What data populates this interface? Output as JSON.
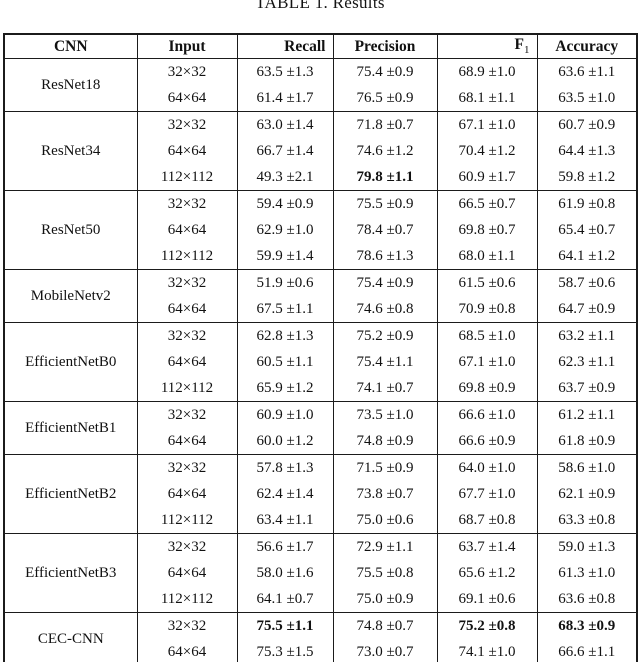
{
  "title": "TABLE 1. Results",
  "colors": {
    "border": "#1b1b1b",
    "text": "#111111",
    "background": "#ffffff"
  },
  "table": {
    "headers": {
      "cnn": "CNN",
      "input": "Input",
      "recall": "Recall",
      "precision": "Precision",
      "f1_base": "F",
      "f1_sub": "1",
      "accuracy": "Accuracy"
    },
    "metric_order": [
      "recall",
      "precision",
      "f1",
      "accuracy"
    ],
    "groups": [
      {
        "model": "ResNet18",
        "rows": [
          {
            "input": "32×32",
            "metrics": [
              "63.5 ±1.3",
              "75.4 ±0.9",
              "68.9 ±1.0",
              "63.6 ±1.1"
            ],
            "bold": []
          },
          {
            "input": "64×64",
            "metrics": [
              "61.4 ±1.7",
              "76.5 ±0.9",
              "68.1 ±1.1",
              "63.5 ±1.0"
            ],
            "bold": []
          }
        ]
      },
      {
        "model": "ResNet34",
        "rows": [
          {
            "input": "32×32",
            "metrics": [
              "63.0 ±1.4",
              "71.8 ±0.7",
              "67.1 ±1.0",
              "60.7 ±0.9"
            ],
            "bold": []
          },
          {
            "input": "64×64",
            "metrics": [
              "66.7 ±1.4",
              "74.6 ±1.2",
              "70.4 ±1.2",
              "64.4 ±1.3"
            ],
            "bold": []
          },
          {
            "input": "112×112",
            "metrics": [
              "49.3 ±2.1",
              "79.8 ±1.1",
              "60.9 ±1.7",
              "59.8 ±1.2"
            ],
            "bold": [
              1
            ]
          }
        ]
      },
      {
        "model": "ResNet50",
        "rows": [
          {
            "input": "32×32",
            "metrics": [
              "59.4 ±0.9",
              "75.5 ±0.9",
              "66.5 ±0.7",
              "61.9 ±0.8"
            ],
            "bold": []
          },
          {
            "input": "64×64",
            "metrics": [
              "62.9 ±1.0",
              "78.4 ±0.7",
              "69.8 ±0.7",
              "65.4 ±0.7"
            ],
            "bold": []
          },
          {
            "input": "112×112",
            "metrics": [
              "59.9 ±1.4",
              "78.6 ±1.3",
              "68.0 ±1.1",
              "64.1 ±1.2"
            ],
            "bold": []
          }
        ]
      },
      {
        "model": "MobileNetv2",
        "rows": [
          {
            "input": "32×32",
            "metrics": [
              "51.9 ±0.6",
              "75.4 ±0.9",
              "61.5 ±0.6",
              "58.7 ±0.6"
            ],
            "bold": []
          },
          {
            "input": "64×64",
            "metrics": [
              "67.5 ±1.1",
              "74.6 ±0.8",
              "70.9 ±0.8",
              "64.7 ±0.9"
            ],
            "bold": []
          }
        ]
      },
      {
        "model": "EfficientNetB0",
        "rows": [
          {
            "input": "32×32",
            "metrics": [
              "62.8 ±1.3",
              "75.2 ±0.9",
              "68.5 ±1.0",
              "63.2 ±1.1"
            ],
            "bold": []
          },
          {
            "input": "64×64",
            "metrics": [
              "60.5 ±1.1",
              "75.4 ±1.1",
              "67.1 ±1.0",
              "62.3 ±1.1"
            ],
            "bold": []
          },
          {
            "input": "112×112",
            "metrics": [
              "65.9 ±1.2",
              "74.1 ±0.7",
              "69.8 ±0.9",
              "63.7 ±0.9"
            ],
            "bold": []
          }
        ]
      },
      {
        "model": "EfficientNetB1",
        "rows": [
          {
            "input": "32×32",
            "metrics": [
              "60.9 ±1.0",
              "73.5 ±1.0",
              "66.6 ±1.0",
              "61.2 ±1.1"
            ],
            "bold": []
          },
          {
            "input": "64×64",
            "metrics": [
              "60.0 ±1.2",
              "74.8 ±0.9",
              "66.6 ±0.9",
              "61.8 ±0.9"
            ],
            "bold": []
          }
        ]
      },
      {
        "model": "EfficientNetB2",
        "rows": [
          {
            "input": "32×32",
            "metrics": [
              "57.8 ±1.3",
              "71.5 ±0.9",
              "64.0 ±1.0",
              "58.6 ±1.0"
            ],
            "bold": []
          },
          {
            "input": "64×64",
            "metrics": [
              "62.4 ±1.4",
              "73.8 ±0.7",
              "67.7 ±1.0",
              "62.1 ±0.9"
            ],
            "bold": []
          },
          {
            "input": "112×112",
            "metrics": [
              "63.4 ±1.1",
              "75.0 ±0.6",
              "68.7 ±0.8",
              "63.3 ±0.8"
            ],
            "bold": []
          }
        ]
      },
      {
        "model": "EfficientNetB3",
        "rows": [
          {
            "input": "32×32",
            "metrics": [
              "56.6 ±1.7",
              "72.9 ±1.1",
              "63.7 ±1.4",
              "59.0 ±1.3"
            ],
            "bold": []
          },
          {
            "input": "64×64",
            "metrics": [
              "58.0 ±1.6",
              "75.5 ±0.8",
              "65.6 ±1.2",
              "61.3 ±1.0"
            ],
            "bold": []
          },
          {
            "input": "112×112",
            "metrics": [
              "64.1 ±0.7",
              "75.0 ±0.9",
              "69.1 ±0.6",
              "63.6 ±0.8"
            ],
            "bold": []
          }
        ]
      },
      {
        "model": "CEC-CNN",
        "rows": [
          {
            "input": "32×32",
            "metrics": [
              "75.5 ±1.1",
              "74.8 ±0.7",
              "75.2 ±0.8",
              "68.3 ±0.9"
            ],
            "bold": [
              0,
              2,
              3
            ]
          },
          {
            "input": "64×64",
            "metrics": [
              "75.3 ±1.5",
              "73.0 ±0.7",
              "74.1 ±1.0",
              "66.6 ±1.1"
            ],
            "bold": []
          }
        ]
      }
    ]
  }
}
